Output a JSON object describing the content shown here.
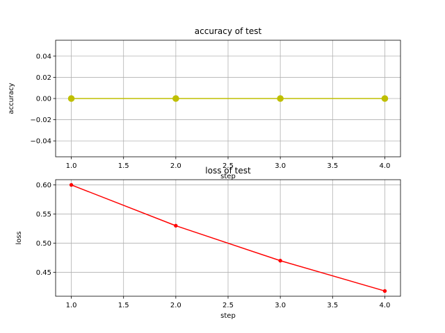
{
  "chart_data": [
    {
      "type": "line",
      "title": "accuracy of test",
      "xlabel": "step",
      "ylabel": "accuracy",
      "xlim": [
        0.85,
        4.15
      ],
      "ylim": [
        -0.055,
        0.055
      ],
      "xticks": [
        "1.0",
        "1.5",
        "2.0",
        "2.5",
        "3.0",
        "3.5",
        "4.0"
      ],
      "yticks": [
        "−0.04",
        "−0.02",
        "0.00",
        "0.02",
        "0.04"
      ],
      "grid": true,
      "series": [
        {
          "color": "#bfbf00",
          "marker": "circle",
          "x": [
            1,
            2,
            3,
            4
          ],
          "y": [
            0,
            0,
            0,
            0
          ]
        }
      ]
    },
    {
      "type": "line",
      "title": "loss of test",
      "xlabel": "step",
      "ylabel": "loss",
      "xlim": [
        0.85,
        4.15
      ],
      "ylim": [
        0.409,
        0.609
      ],
      "xticks": [
        "1.0",
        "1.5",
        "2.0",
        "2.5",
        "3.0",
        "3.5",
        "4.0"
      ],
      "yticks": [
        "0.45",
        "0.50",
        "0.55",
        "0.60"
      ],
      "grid": true,
      "series": [
        {
          "color": "#ff0000",
          "marker": "dot",
          "x": [
            1,
            2,
            3,
            4
          ],
          "y": [
            0.6,
            0.53,
            0.47,
            0.418
          ]
        }
      ]
    }
  ]
}
